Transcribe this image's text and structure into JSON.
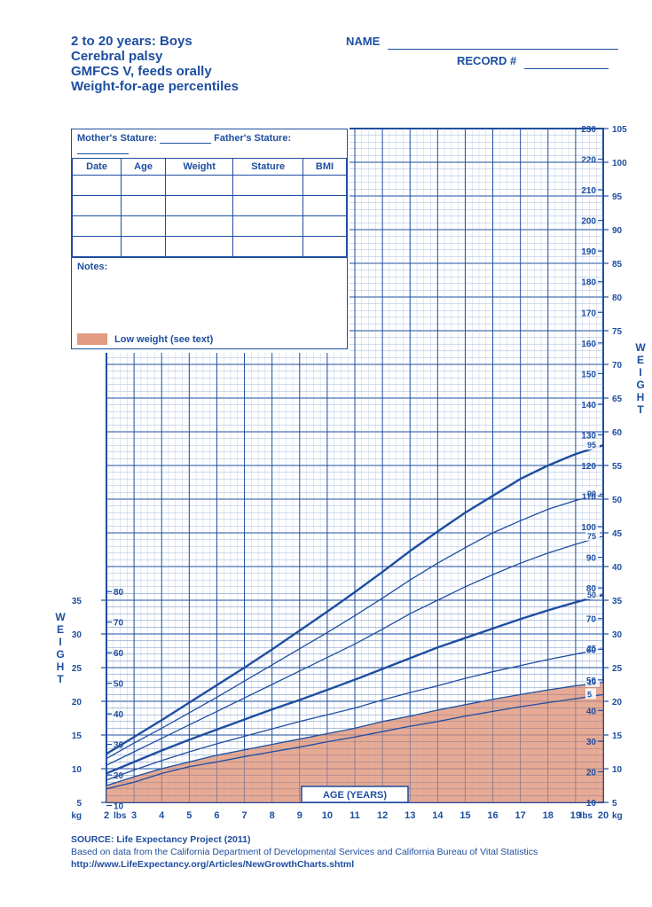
{
  "header": {
    "line1": "2 to 20 years: Boys",
    "line2": "Cerebral palsy",
    "line3": "GMFCS V, feeds orally",
    "line4": "Weight-for-age percentiles",
    "name_label": "NAME",
    "record_label": "RECORD #"
  },
  "panel": {
    "mothers_stature": "Mother's Stature:",
    "fathers_stature": "Father's Stature:",
    "cols": [
      "Date",
      "Age",
      "Weight",
      "Stature",
      "BMI"
    ],
    "rows": 4,
    "notes_label": "Notes:"
  },
  "legend": {
    "low_weight": "Low weight (see text)",
    "swatch_color": "#e29b82"
  },
  "chart": {
    "type": "growth-percentile",
    "colors": {
      "line_major": "#1e4ea0",
      "line_minor": "#1e4ea0",
      "grid": "#1e4ea0",
      "grid_minor": "#8aa6d6",
      "low_fill": "#e29b82",
      "text": "#1e4ea0",
      "background": "#ffffff"
    },
    "fonts": {
      "title_pt": 14,
      "header_pt": 13,
      "axis_pt": 11,
      "tick_pt": 10,
      "small_pt": 9
    },
    "x": {
      "label": "AGE (YEARS)",
      "min": 2,
      "max": 20,
      "tick_step": 1,
      "ticks": [
        2,
        3,
        4,
        5,
        6,
        7,
        8,
        9,
        10,
        11,
        12,
        13,
        14,
        15,
        16,
        17,
        18,
        19,
        20
      ]
    },
    "y_kg_left": {
      "label": "WEIGHT",
      "unit_top": "kg",
      "unit_bottom": "kg",
      "min": 5,
      "max": 35,
      "tick_step": 5,
      "ticks": [
        5,
        10,
        15,
        20,
        25,
        30,
        35
      ]
    },
    "y_lbs_left": {
      "unit": "lbs",
      "ticks": [
        10,
        20,
        30,
        40,
        50,
        60,
        70,
        80
      ]
    },
    "y_lbs_right": {
      "unit": "lbs",
      "ticks": [
        10,
        20,
        30,
        40,
        50,
        60,
        70,
        80,
        90,
        100,
        110,
        120,
        130,
        140,
        150,
        160,
        170,
        180,
        190,
        200,
        210,
        220,
        230
      ]
    },
    "y_kg_right": {
      "label": "WEIGHT",
      "unit": "kg",
      "ticks": [
        5,
        10,
        15,
        20,
        25,
        30,
        35,
        40,
        45,
        50,
        55,
        60,
        65,
        70,
        75,
        80,
        85,
        90,
        95,
        100,
        105
      ]
    },
    "right_kg_lims": {
      "min": 5,
      "max": 105
    },
    "right_lbs_lims": {
      "min": 10,
      "max": 230
    },
    "percentiles": {
      "5": {
        "width": 1.3,
        "label": "5",
        "data": [
          [
            2,
            7
          ],
          [
            3,
            8
          ],
          [
            4,
            9.3
          ],
          [
            5,
            10.3
          ],
          [
            6,
            11
          ],
          [
            7,
            11.8
          ],
          [
            8,
            12.5
          ],
          [
            9,
            13.2
          ],
          [
            10,
            14
          ],
          [
            11,
            14.7
          ],
          [
            12,
            15.5
          ],
          [
            13,
            16.3
          ],
          [
            14,
            17
          ],
          [
            15,
            17.8
          ],
          [
            16,
            18.5
          ],
          [
            17,
            19.2
          ],
          [
            18,
            19.8
          ],
          [
            19,
            20.4
          ],
          [
            20,
            21
          ]
        ]
      },
      "10": {
        "width": 1.3,
        "label": "10",
        "data": [
          [
            2,
            7.5
          ],
          [
            3,
            8.8
          ],
          [
            4,
            10
          ],
          [
            5,
            11
          ],
          [
            6,
            12
          ],
          [
            7,
            12.8
          ],
          [
            8,
            13.6
          ],
          [
            9,
            14.4
          ],
          [
            10,
            15.2
          ],
          [
            11,
            16
          ],
          [
            12,
            17
          ],
          [
            13,
            17.8
          ],
          [
            14,
            18.7
          ],
          [
            15,
            19.5
          ],
          [
            16,
            20.3
          ],
          [
            17,
            21
          ],
          [
            18,
            21.7
          ],
          [
            19,
            22.3
          ],
          [
            20,
            22.8
          ]
        ]
      },
      "25": {
        "width": 1.3,
        "label": "25",
        "data": [
          [
            2,
            8.3
          ],
          [
            3,
            9.8
          ],
          [
            4,
            11.2
          ],
          [
            5,
            12.5
          ],
          [
            6,
            13.7
          ],
          [
            7,
            14.8
          ],
          [
            8,
            15.9
          ],
          [
            9,
            17
          ],
          [
            10,
            18
          ],
          [
            11,
            19
          ],
          [
            12,
            20.2
          ],
          [
            13,
            21.3
          ],
          [
            14,
            22.3
          ],
          [
            15,
            23.4
          ],
          [
            16,
            24.4
          ],
          [
            17,
            25.3
          ],
          [
            18,
            26.2
          ],
          [
            19,
            27
          ],
          [
            20,
            27.8
          ]
        ]
      },
      "50": {
        "width": 2.4,
        "label": "50",
        "data": [
          [
            2,
            9.3
          ],
          [
            3,
            11
          ],
          [
            4,
            12.7
          ],
          [
            5,
            14.3
          ],
          [
            6,
            15.8
          ],
          [
            7,
            17.3
          ],
          [
            8,
            18.8
          ],
          [
            9,
            20.2
          ],
          [
            10,
            21.7
          ],
          [
            11,
            23.2
          ],
          [
            12,
            24.8
          ],
          [
            13,
            26.4
          ],
          [
            14,
            28
          ],
          [
            15,
            29.4
          ],
          [
            16,
            30.8
          ],
          [
            17,
            32.2
          ],
          [
            18,
            33.5
          ],
          [
            19,
            34.7
          ],
          [
            20,
            35.8
          ]
        ]
      },
      "75": {
        "width": 1.3,
        "label": "75",
        "data": [
          [
            2,
            10.5
          ],
          [
            3,
            12.5
          ],
          [
            4,
            14.5
          ],
          [
            5,
            16.5
          ],
          [
            6,
            18.5
          ],
          [
            7,
            20.5
          ],
          [
            8,
            22.5
          ],
          [
            9,
            24.5
          ],
          [
            10,
            26.5
          ],
          [
            11,
            28.5
          ],
          [
            12,
            30.7
          ],
          [
            13,
            33
          ],
          [
            14,
            35
          ],
          [
            15,
            37
          ],
          [
            16,
            38.8
          ],
          [
            17,
            40.5
          ],
          [
            18,
            42
          ],
          [
            19,
            43.3
          ],
          [
            20,
            44.5
          ]
        ]
      },
      "90": {
        "width": 1.3,
        "label": "90",
        "data": [
          [
            2,
            11.5
          ],
          [
            3,
            13.8
          ],
          [
            4,
            16
          ],
          [
            5,
            18.3
          ],
          [
            6,
            20.6
          ],
          [
            7,
            23
          ],
          [
            8,
            25.4
          ],
          [
            9,
            27.8
          ],
          [
            10,
            30.2
          ],
          [
            11,
            32.7
          ],
          [
            12,
            35.3
          ],
          [
            13,
            38
          ],
          [
            14,
            40.5
          ],
          [
            15,
            42.8
          ],
          [
            16,
            45
          ],
          [
            17,
            46.8
          ],
          [
            18,
            48.5
          ],
          [
            19,
            49.8
          ],
          [
            20,
            50.8
          ]
        ]
      },
      "95": {
        "width": 2.4,
        "label": "95",
        "data": [
          [
            2,
            12.2
          ],
          [
            3,
            14.7
          ],
          [
            4,
            17.2
          ],
          [
            5,
            19.8
          ],
          [
            6,
            22.4
          ],
          [
            7,
            25
          ],
          [
            8,
            27.7
          ],
          [
            9,
            30.5
          ],
          [
            10,
            33.3
          ],
          [
            11,
            36.2
          ],
          [
            12,
            39.2
          ],
          [
            13,
            42.3
          ],
          [
            14,
            45.2
          ],
          [
            15,
            48
          ],
          [
            16,
            50.5
          ],
          [
            17,
            53
          ],
          [
            18,
            55
          ],
          [
            19,
            56.7
          ],
          [
            20,
            58
          ]
        ]
      }
    },
    "low_weight_region_pct": "10"
  },
  "source": {
    "line1": "SOURCE: Life Expectancy Project (2011)",
    "line2": "Based on data from the California Department of Developmental Services and California Bureau of Vital Statistics",
    "url": "http://www.LifeExpectancy.org/Articles/NewGrowthCharts.shtml"
  }
}
